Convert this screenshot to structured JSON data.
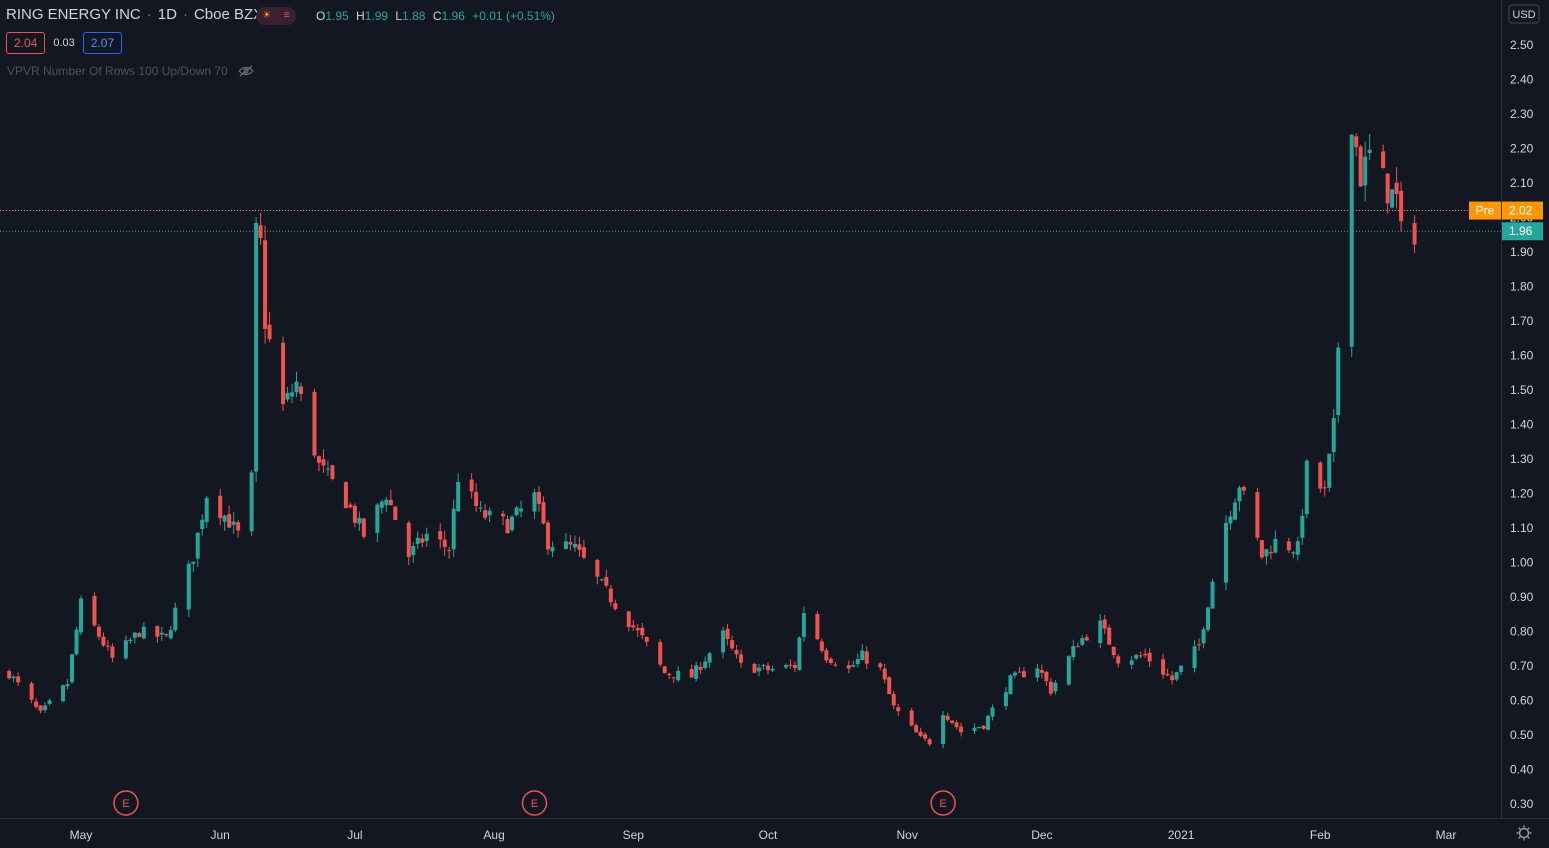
{
  "header": {
    "symbol": "RING ENERGY INC",
    "interval": "1D",
    "exchange": "Cboe BZX"
  },
  "ohlc": {
    "open_label": "O",
    "open": "1.95",
    "high_label": "H",
    "high": "1.99",
    "low_label": "L",
    "low": "1.88",
    "close_label": "C",
    "close": "1.96",
    "change": "+0.01 (+0.51%)"
  },
  "quote": {
    "bid": "2.04",
    "spread": "0.03",
    "ask": "2.07"
  },
  "indicator": {
    "label": "VPVR Number Of Rows 100 Up/Down 70"
  },
  "axis": {
    "currency": "USD"
  },
  "price_tags": {
    "pre_label": "Pre",
    "pre_value": "2.02",
    "last_value": "1.96"
  },
  "earnings_marker": "E",
  "colors": {
    "background": "#131722",
    "up": "#26a69a",
    "down": "#ef5350",
    "pre": "#ff9800",
    "last": "#26a69a",
    "axis_text": "#d1d4dc"
  },
  "chart_data": {
    "type": "candlestick",
    "title": "RING ENERGY INC, 1D, Cboe BZX",
    "ylabel": "USD",
    "ylim": [
      0.26,
      2.63
    ],
    "y_ticks": [
      0.3,
      0.4,
      0.5,
      0.6,
      0.7,
      0.8,
      0.9,
      1.0,
      1.1,
      1.2,
      1.3,
      1.4,
      1.5,
      1.6,
      1.7,
      1.8,
      1.9,
      2.0,
      2.1,
      2.2,
      2.3,
      2.4,
      2.5
    ],
    "x_ticks": [
      {
        "label": "May",
        "date": "2020-05-01"
      },
      {
        "label": "Jun",
        "date": "2020-06-01"
      },
      {
        "label": "Jul",
        "date": "2020-07-01"
      },
      {
        "label": "Aug",
        "date": "2020-08-01"
      },
      {
        "label": "Sep",
        "date": "2020-09-01"
      },
      {
        "label": "Oct",
        "date": "2020-10-01"
      },
      {
        "label": "Nov",
        "date": "2020-11-01"
      },
      {
        "label": "Dec",
        "date": "2020-12-01"
      },
      {
        "label": "2021",
        "date": "2021-01-01"
      },
      {
        "label": "Feb",
        "date": "2021-02-01"
      },
      {
        "label": "Mar",
        "date": "2021-03-01"
      }
    ],
    "earnings_dates": [
      "2020-05-11",
      "2020-08-10",
      "2020-11-09"
    ],
    "horizontal_lines": [
      {
        "name": "Pre",
        "value": 2.02
      },
      {
        "name": "Last",
        "value": 1.96
      }
    ],
    "keypoints": [
      {
        "date": "2020-04-15",
        "close": 0.68
      },
      {
        "date": "2020-04-22",
        "close": 0.56
      },
      {
        "date": "2020-04-28",
        "close": 0.65
      },
      {
        "date": "2020-05-01",
        "close": 0.88
      },
      {
        "date": "2020-05-08",
        "close": 0.72
      },
      {
        "date": "2020-05-14",
        "close": 0.8
      },
      {
        "date": "2020-05-20",
        "close": 0.78
      },
      {
        "date": "2020-05-26",
        "close": 1.02
      },
      {
        "date": "2020-05-29",
        "close": 1.2
      },
      {
        "date": "2020-06-03",
        "close": 1.12
      },
      {
        "date": "2020-06-05",
        "close": 1.08
      },
      {
        "date": "2020-06-08",
        "close": 1.24
      },
      {
        "date": "2020-06-09",
        "close": 1.95
      },
      {
        "date": "2020-06-10",
        "close": 1.92
      },
      {
        "date": "2020-06-11",
        "close": 1.7
      },
      {
        "date": "2020-06-15",
        "close": 1.45
      },
      {
        "date": "2020-06-18",
        "close": 1.52
      },
      {
        "date": "2020-06-23",
        "close": 1.28
      },
      {
        "date": "2020-06-29",
        "close": 1.18
      },
      {
        "date": "2020-07-03",
        "close": 1.08
      },
      {
        "date": "2020-07-08",
        "close": 1.2
      },
      {
        "date": "2020-07-13",
        "close": 1.02
      },
      {
        "date": "2020-07-17",
        "close": 1.08
      },
      {
        "date": "2020-07-22",
        "close": 1.04
      },
      {
        "date": "2020-07-24",
        "close": 1.25
      },
      {
        "date": "2020-07-29",
        "close": 1.14
      },
      {
        "date": "2020-08-04",
        "close": 1.11
      },
      {
        "date": "2020-08-10",
        "close": 1.19
      },
      {
        "date": "2020-08-13",
        "close": 1.06
      },
      {
        "date": "2020-08-19",
        "close": 1.04
      },
      {
        "date": "2020-08-24",
        "close": 0.95
      },
      {
        "date": "2020-08-28",
        "close": 0.88
      },
      {
        "date": "2020-09-03",
        "close": 0.78
      },
      {
        "date": "2020-09-08",
        "close": 0.68
      },
      {
        "date": "2020-09-14",
        "close": 0.67
      },
      {
        "date": "2020-09-21",
        "close": 0.79
      },
      {
        "date": "2020-09-25",
        "close": 0.7
      },
      {
        "date": "2020-10-01",
        "close": 0.69
      },
      {
        "date": "2020-10-07",
        "close": 0.7
      },
      {
        "date": "2020-10-09",
        "close": 0.86
      },
      {
        "date": "2020-10-14",
        "close": 0.73
      },
      {
        "date": "2020-10-19",
        "close": 0.69
      },
      {
        "date": "2020-10-22",
        "close": 0.73
      },
      {
        "date": "2020-10-26",
        "close": 0.69
      },
      {
        "date": "2020-10-29",
        "close": 0.58
      },
      {
        "date": "2020-11-04",
        "close": 0.49
      },
      {
        "date": "2020-11-06",
        "close": 0.48
      },
      {
        "date": "2020-11-09",
        "close": 0.57
      },
      {
        "date": "2020-11-13",
        "close": 0.51
      },
      {
        "date": "2020-11-18",
        "close": 0.53
      },
      {
        "date": "2020-11-24",
        "close": 0.66
      },
      {
        "date": "2020-11-30",
        "close": 0.7
      },
      {
        "date": "2020-12-03",
        "close": 0.63
      },
      {
        "date": "2020-12-09",
        "close": 0.77
      },
      {
        "date": "2020-12-14",
        "close": 0.82
      },
      {
        "date": "2020-12-18",
        "close": 0.72
      },
      {
        "date": "2020-12-24",
        "close": 0.73
      },
      {
        "date": "2020-12-30",
        "close": 0.66
      },
      {
        "date": "2021-01-05",
        "close": 0.76
      },
      {
        "date": "2021-01-08",
        "close": 0.95
      },
      {
        "date": "2021-01-11",
        "close": 1.12
      },
      {
        "date": "2021-01-14",
        "close": 1.23
      },
      {
        "date": "2021-01-19",
        "close": 1.02
      },
      {
        "date": "2021-01-22",
        "close": 1.06
      },
      {
        "date": "2021-01-27",
        "close": 1.04
      },
      {
        "date": "2021-01-29",
        "close": 1.27
      },
      {
        "date": "2021-02-02",
        "close": 1.2
      },
      {
        "date": "2021-02-04",
        "close": 1.39
      },
      {
        "date": "2021-02-05",
        "close": 1.63
      },
      {
        "date": "2021-02-08",
        "close": 2.29
      },
      {
        "date": "2021-02-10",
        "close": 2.12
      },
      {
        "date": "2021-02-12",
        "close": 2.18
      },
      {
        "date": "2021-02-16",
        "close": 2.08
      },
      {
        "date": "2021-02-18",
        "close": 2.05
      },
      {
        "date": "2021-02-19",
        "close": 1.95
      },
      {
        "date": "2021-02-22",
        "close": 1.96
      }
    ]
  }
}
